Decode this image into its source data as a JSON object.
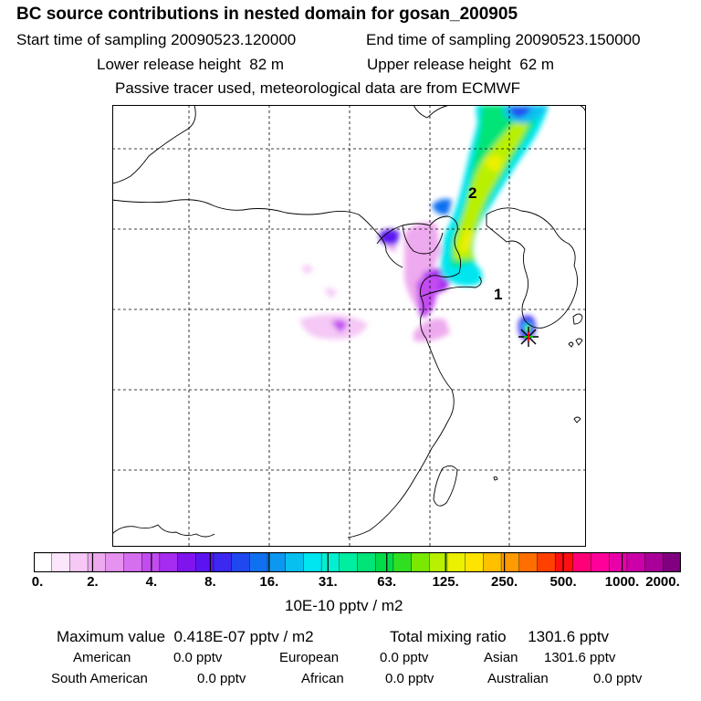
{
  "header": {
    "title": "BC  source contributions in nested domain for gosan_200905",
    "start_label": "Start time of sampling",
    "start_value": "20090523.120000",
    "end_label": "End time of sampling",
    "end_value": "20090523.150000",
    "lower_label": "Lower release height",
    "lower_value": "82 m",
    "upper_label": "Upper release height",
    "upper_value": "62 m",
    "note": "Passive tracer used, meteorological data are from ECMWF"
  },
  "map": {
    "labels": [
      {
        "text": "2"
      },
      {
        "text": "1"
      }
    ]
  },
  "colorbar": {
    "ticks": [
      "0.",
      "2.",
      "4.",
      "8.",
      "16.",
      "31.",
      "63.",
      "125.",
      "250.",
      "500.",
      "1000.",
      "2000."
    ],
    "unit": "10E-10 pptv / m2",
    "colors": [
      "#ffffff",
      "#fbe6fb",
      "#f5c8f5",
      "#eeaaee",
      "#e592f0",
      "#d66ef0",
      "#c24cf0",
      "#a52cf0",
      "#7f14ee",
      "#5b14f0",
      "#3c28f0",
      "#2048f0",
      "#1070f0",
      "#0c98f0",
      "#08c0f0",
      "#00e6f0",
      "#00f0d0",
      "#00eea0",
      "#00e478",
      "#00dc48",
      "#30e020",
      "#7ae800",
      "#b8f000",
      "#eaf000",
      "#ffe400",
      "#ffc000",
      "#ff9a00",
      "#ff6e00",
      "#ff4000",
      "#ff1010",
      "#ff0078",
      "#ff0098",
      "#e800a8",
      "#cc00a8",
      "#a80098",
      "#800080"
    ]
  },
  "summary": {
    "max_label": "Maximum value",
    "max_value": "0.418E-07 pptv / m2",
    "total_label": "Total mixing ratio",
    "total_value": "1301.6 pptv",
    "regions": [
      {
        "name": "American",
        "value": "0.0 pptv"
      },
      {
        "name": "European",
        "value": "0.0 pptv"
      },
      {
        "name": "Asian",
        "value": "1301.6 pptv"
      },
      {
        "name": "South American",
        "value": "0.0 pptv"
      },
      {
        "name": "African",
        "value": "0.0 pptv"
      },
      {
        "name": "Australian",
        "value": "0.0 pptv"
      }
    ]
  }
}
